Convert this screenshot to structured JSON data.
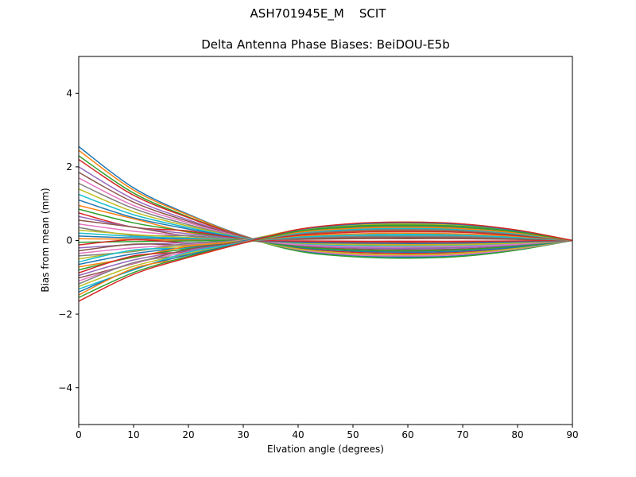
{
  "chart_data": {
    "type": "line",
    "title": "ASH701945E_M    SCIT",
    "subtitle": "Delta Antenna Phase Biases: BeiDOU-E5b",
    "xlabel": "Elvation angle (degrees)",
    "ylabel": "Bias from mean (mm)",
    "xlim": [
      0,
      90
    ],
    "ylim": [
      -5,
      5
    ],
    "xticks": [
      0,
      10,
      20,
      30,
      40,
      50,
      60,
      70,
      80,
      90
    ],
    "yticks": [
      -4,
      -2,
      0,
      2,
      4
    ],
    "ytick_labels": [
      "−4",
      "−2",
      "0",
      "2",
      "4"
    ],
    "grid": false,
    "legend": "none",
    "line_width": 1.5,
    "background_color": "#ffffff",
    "spine_color": "#000000",
    "text_color": "#000000",
    "palette": [
      "#1f77b4",
      "#ff7f0e",
      "#2ca02c",
      "#d62728",
      "#9467bd",
      "#8c564b",
      "#e377c2",
      "#7f7f7f",
      "#bcbd22",
      "#17becf"
    ],
    "x": [
      0,
      10,
      20,
      30,
      40,
      50,
      60,
      70,
      80,
      90
    ],
    "series": [
      [
        2.55,
        1.43,
        0.71,
        0.13,
        -0.27,
        -0.41,
        -0.45,
        -0.41,
        -0.25,
        0
      ],
      [
        2.45,
        1.37,
        0.69,
        0.12,
        -0.24,
        -0.37,
        -0.4,
        -0.36,
        -0.22,
        0
      ],
      [
        2.3,
        1.29,
        0.64,
        0.11,
        -0.29,
        -0.44,
        -0.48,
        -0.43,
        -0.26,
        0
      ],
      [
        2.2,
        1.23,
        0.62,
        0.11,
        -0.21,
        -0.32,
        -0.35,
        -0.32,
        -0.19,
        0
      ],
      [
        2.0,
        1.12,
        0.56,
        0.1,
        -0.18,
        -0.28,
        -0.3,
        -0.27,
        -0.17,
        0
      ],
      [
        1.85,
        1.04,
        0.52,
        0.1,
        -0.15,
        -0.23,
        -0.25,
        -0.23,
        -0.14,
        0
      ],
      [
        1.7,
        0.95,
        0.48,
        0.08,
        -0.25,
        -0.39,
        -0.42,
        -0.38,
        -0.23,
        0
      ],
      [
        1.55,
        0.87,
        0.43,
        0.08,
        -0.12,
        -0.18,
        -0.2,
        -0.18,
        -0.11,
        0
      ],
      [
        1.4,
        0.78,
        0.39,
        0.06,
        -0.23,
        -0.35,
        -0.38,
        -0.34,
        -0.21,
        0
      ],
      [
        1.25,
        0.7,
        0.35,
        0.07,
        -0.09,
        -0.14,
        -0.15,
        -0.14,
        -0.08,
        0
      ],
      [
        1.1,
        0.62,
        0.31,
        0.05,
        -0.19,
        -0.29,
        -0.32,
        -0.29,
        -0.18,
        0
      ],
      [
        0.95,
        0.59,
        0.22,
        0.05,
        -0.06,
        -0.09,
        -0.1,
        -0.09,
        -0.06,
        0
      ],
      [
        0.85,
        0.48,
        0.24,
        0.03,
        -0.17,
        -0.26,
        -0.28,
        -0.25,
        -0.15,
        0
      ],
      [
        0.75,
        0.36,
        0.26,
        0.04,
        -0.03,
        -0.05,
        -0.05,
        -0.05,
        -0.03,
        0
      ],
      [
        0.65,
        0.36,
        0.18,
        0.03,
        -0.13,
        -0.2,
        -0.22,
        -0.2,
        -0.12,
        0
      ],
      [
        0.55,
        0.36,
        0.12,
        0.04,
        0.03,
        0.05,
        0.05,
        0.05,
        0.03,
        0
      ],
      [
        0.45,
        0.25,
        0.13,
        0.02,
        -0.11,
        -0.17,
        -0.18,
        -0.16,
        -0.1,
        0
      ],
      [
        0.35,
        0.14,
        0.13,
        0.03,
        0.06,
        0.09,
        0.1,
        0.09,
        0.06,
        0
      ],
      [
        0.28,
        0.16,
        0.08,
        0.01,
        -0.07,
        -0.11,
        -0.12,
        -0.11,
        -0.07,
        0
      ],
      [
        0.2,
        0.11,
        0.06,
        0.02,
        0.11,
        0.17,
        0.18,
        0.16,
        0.1,
        0
      ],
      [
        0.12,
        0.07,
        0.03,
        0.0,
        -0.05,
        -0.07,
        -0.08,
        -0.07,
        -0.04,
        0
      ],
      [
        0.05,
        0.03,
        0.01,
        0.02,
        0.15,
        0.23,
        0.25,
        0.23,
        0.14,
        0
      ],
      [
        -0.05,
        -0.03,
        -0.01,
        0.02,
        0.19,
        0.29,
        0.32,
        0.29,
        0.18,
        0
      ],
      [
        -0.12,
        0.02,
        -0.06,
        -0.01,
        -0.01,
        -0.02,
        -0.02,
        -0.02,
        -0.01,
        0
      ],
      [
        -0.2,
        -0.11,
        -0.06,
        0.01,
        0.24,
        0.37,
        0.4,
        0.36,
        0.22,
        0
      ],
      [
        -0.28,
        -0.1,
        -0.12,
        -0.01,
        0.05,
        0.07,
        0.08,
        0.07,
        0.04,
        0
      ],
      [
        -0.35,
        -0.2,
        -0.1,
        0.01,
        0.28,
        0.42,
        0.46,
        0.41,
        0.25,
        0
      ],
      [
        -0.42,
        -0.3,
        -0.08,
        -0.02,
        0.07,
        0.11,
        0.12,
        0.11,
        0.07,
        0
      ],
      [
        -0.5,
        -0.28,
        -0.14,
        0.0,
        0.3,
        0.46,
        0.5,
        0.45,
        0.28,
        0
      ],
      [
        -0.58,
        -0.26,
        -0.2,
        -0.03,
        0.09,
        0.14,
        0.15,
        0.14,
        0.08,
        0
      ],
      [
        -0.65,
        -0.36,
        -0.18,
        -0.01,
        0.26,
        0.4,
        0.44,
        0.4,
        0.24,
        0
      ],
      [
        -0.72,
        -0.46,
        -0.16,
        -0.03,
        0.12,
        0.18,
        0.2,
        0.18,
        0.11,
        0
      ],
      [
        -0.8,
        -0.45,
        -0.22,
        -0.03,
        0.23,
        0.35,
        0.38,
        0.34,
        0.21,
        0
      ],
      [
        -0.88,
        -0.42,
        -0.3,
        -0.04,
        0.14,
        0.22,
        0.24,
        0.22,
        0.13,
        0
      ],
      [
        -0.95,
        -0.53,
        -0.27,
        -0.03,
        0.25,
        0.39,
        0.42,
        0.38,
        0.23,
        0
      ],
      [
        -1.02,
        -0.63,
        -0.24,
        -0.04,
        0.17,
        0.26,
        0.28,
        0.25,
        0.15,
        0
      ],
      [
        -1.1,
        -0.62,
        -0.31,
        -0.05,
        0.21,
        0.32,
        0.35,
        0.32,
        0.19,
        0
      ],
      [
        -1.18,
        -0.6,
        -0.38,
        -0.05,
        0.18,
        0.28,
        0.3,
        0.27,
        0.17,
        0
      ],
      [
        -1.25,
        -0.7,
        -0.35,
        -0.05,
        0.27,
        0.41,
        0.45,
        0.41,
        0.25,
        0
      ],
      [
        -1.32,
        -0.8,
        -0.32,
        -0.06,
        0.2,
        0.3,
        0.33,
        0.3,
        0.18,
        0
      ],
      [
        -1.4,
        -0.78,
        -0.39,
        -0.06,
        0.29,
        0.44,
        0.48,
        0.43,
        0.26,
        0
      ],
      [
        -1.48,
        -0.76,
        -0.46,
        -0.07,
        0.22,
        0.33,
        0.36,
        0.32,
        0.2,
        0
      ],
      [
        -1.55,
        -0.87,
        -0.43,
        -0.07,
        0.25,
        0.39,
        0.42,
        0.38,
        0.23,
        0
      ],
      [
        -1.65,
        -0.92,
        -0.46,
        -0.07,
        0.3,
        0.46,
        0.5,
        0.45,
        0.28,
        0
      ]
    ]
  }
}
